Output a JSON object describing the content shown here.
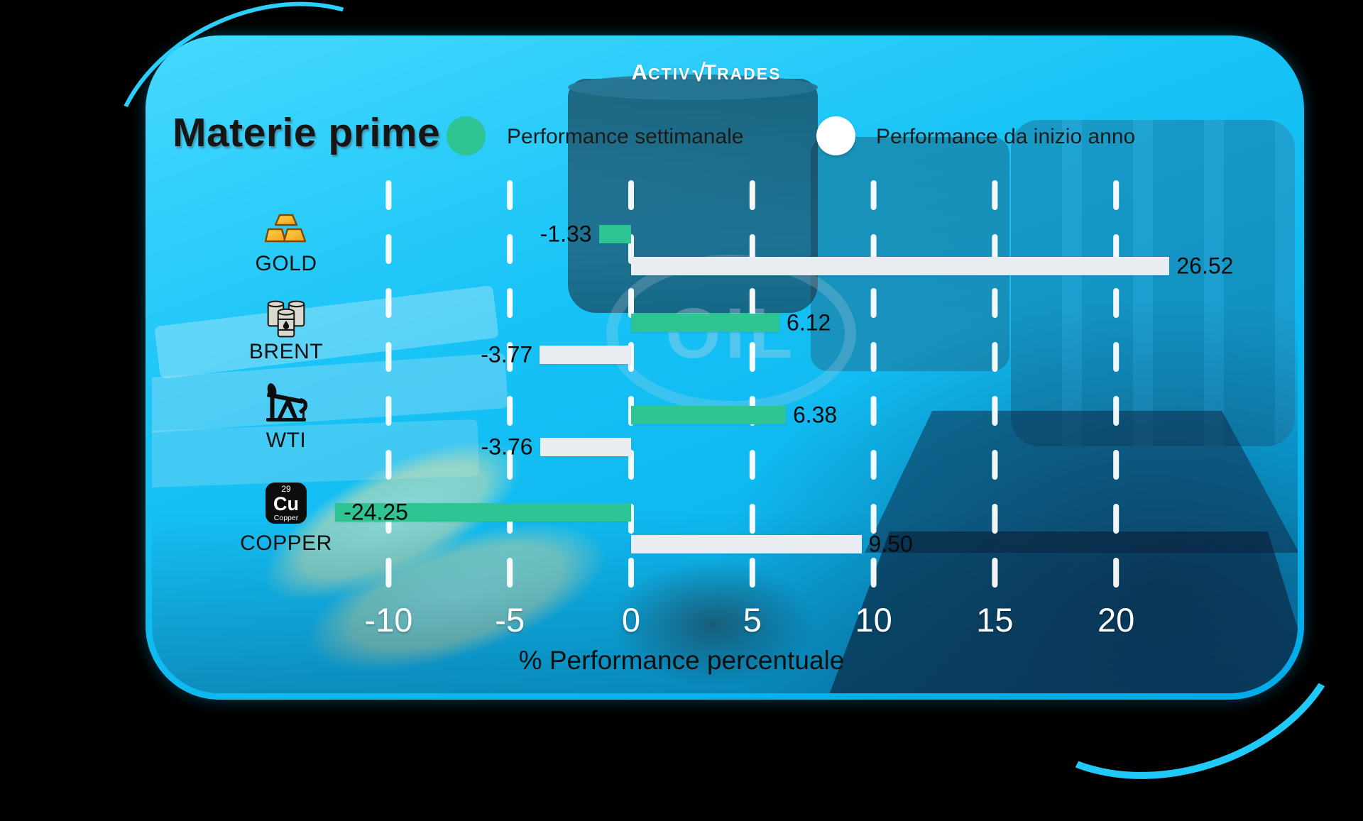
{
  "brand": {
    "name": "ActivTrades",
    "logo_part1": "A",
    "logo_part1b": "CTIV",
    "logo_check": "√",
    "logo_part2": "T",
    "logo_part2b": "RADES"
  },
  "title": "Materie prime",
  "legend": {
    "weekly": {
      "label": "Performance settimanale",
      "color": "#2ec494"
    },
    "ytd": {
      "label": "Performance da inizio anno",
      "color": "#ffffff"
    }
  },
  "chart_data": {
    "type": "bar",
    "orientation": "horizontal",
    "title": "Materie prime",
    "xlabel": "% Performance percentuale",
    "x_ticks": [
      -10,
      -5,
      0,
      5,
      10,
      15,
      20
    ],
    "x_tick_labels": [
      "-10",
      "-5",
      "0",
      "5",
      "10",
      "15",
      "20"
    ],
    "x_visible_range": [
      -12.2,
      22.2
    ],
    "grid": "dashed-vertical-white",
    "categories": [
      "GOLD",
      "BRENT",
      "WTI",
      "COPPER"
    ],
    "icons": [
      "gold-bars-icon",
      "oil-barrels-icon",
      "oil-pump-icon",
      "copper-element-icon"
    ],
    "copper_element": {
      "number": "29",
      "symbol": "Cu",
      "name": "Copper"
    },
    "series": [
      {
        "name": "Performance settimanale",
        "color": "#2ec494",
        "values": [
          -1.33,
          6.12,
          6.38,
          -24.25
        ],
        "labels": [
          "-1.33",
          "6.12",
          "6.38",
          "-24.25"
        ]
      },
      {
        "name": "Performance da inizio anno",
        "color": "#e9edf2",
        "values": [
          26.52,
          -3.77,
          -3.76,
          9.5
        ],
        "labels": [
          "26.52",
          "-3.77",
          "-3.76",
          "9.50"
        ]
      }
    ]
  }
}
